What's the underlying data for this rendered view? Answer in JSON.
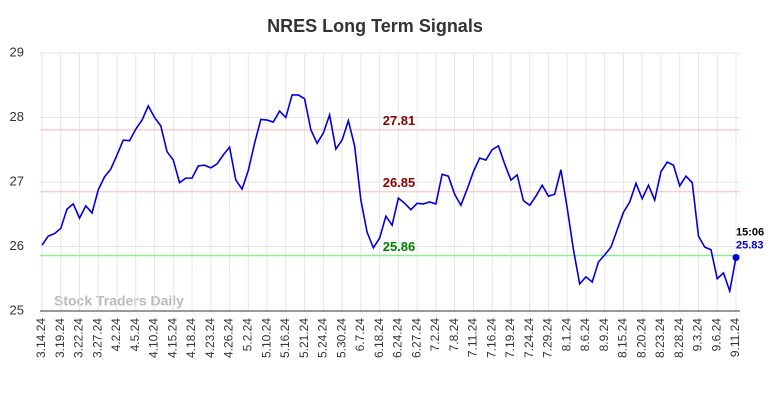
{
  "chart_data": {
    "type": "line",
    "title": "NRES Long Term Signals",
    "watermark": "Stock Traders Daily",
    "categories": [
      "3.14.24",
      null,
      null,
      "3.19.24",
      null,
      null,
      "3.22.24",
      null,
      null,
      "3.27.24",
      null,
      null,
      "4.2.24",
      null,
      null,
      "4.5.24",
      null,
      null,
      "4.10.24",
      null,
      null,
      "4.15.24",
      null,
      null,
      "4.18.24",
      null,
      null,
      "4.23.24",
      null,
      null,
      "4.26.24",
      null,
      null,
      "5.2.24",
      null,
      null,
      "5.10.24",
      null,
      null,
      "5.16.24",
      null,
      null,
      "5.21.24",
      null,
      null,
      "5.24.24",
      null,
      null,
      "5.30.24",
      null,
      null,
      "6.7.24",
      null,
      null,
      "6.18.24",
      null,
      null,
      "6.24.24",
      null,
      null,
      "6.27.24",
      null,
      null,
      "7.2.24",
      null,
      null,
      "7.8.24",
      null,
      null,
      "7.11.24",
      null,
      null,
      "7.16.24",
      null,
      null,
      "7.19.24",
      null,
      null,
      "7.24.24",
      null,
      null,
      "7.29.24",
      null,
      null,
      "8.1.24",
      null,
      null,
      "8.6.24",
      null,
      null,
      "8.9.24",
      null,
      null,
      "8.15.24",
      null,
      null,
      "8.20.24",
      null,
      null,
      "8.23.24",
      null,
      null,
      "8.28.24",
      null,
      null,
      "9.3.24",
      null,
      null,
      "9.6.24",
      null,
      null,
      "9.11.24"
    ],
    "series": [
      {
        "name": "NRES",
        "color": "#0000dd",
        "values": [
          26.02,
          26.16,
          26.2,
          26.28,
          26.58,
          26.66,
          26.44,
          26.63,
          26.52,
          26.88,
          27.08,
          27.2,
          27.42,
          27.65,
          27.64,
          27.82,
          27.96,
          28.18,
          28.0,
          27.87,
          27.47,
          27.34,
          26.99,
          27.06,
          27.06,
          27.25,
          27.26,
          27.22,
          27.28,
          27.42,
          27.54,
          27.03,
          26.89,
          27.18,
          27.6,
          27.97,
          27.96,
          27.93,
          28.1,
          28.0,
          28.35,
          28.35,
          28.29,
          27.81,
          27.6,
          27.76,
          28.04,
          27.51,
          27.65,
          27.95,
          27.56,
          26.72,
          26.22,
          25.98,
          26.13,
          26.47,
          26.33,
          26.75,
          26.67,
          26.57,
          26.67,
          26.66,
          26.69,
          26.66,
          27.12,
          27.09,
          26.81,
          26.64,
          26.89,
          27.16,
          27.37,
          27.34,
          27.5,
          27.56,
          27.28,
          27.03,
          27.11,
          26.71,
          26.64,
          26.78,
          26.95,
          26.78,
          26.81,
          27.19,
          26.6,
          25.95,
          25.42,
          25.53,
          25.45,
          25.76,
          25.87,
          25.99,
          26.26,
          26.53,
          26.69,
          26.98,
          26.74,
          26.95,
          26.72,
          27.16,
          27.31,
          27.26,
          26.94,
          27.09,
          26.99,
          26.16,
          25.99,
          25.95,
          25.5,
          25.59,
          25.31,
          25.83
        ]
      }
    ],
    "last_time": "15:06",
    "reference_lines": [
      {
        "value": 27.81,
        "color": "#ffcccc",
        "label_color": "#8b0000"
      },
      {
        "value": 26.85,
        "color": "#ffcccc",
        "label_color": "#8b0000"
      },
      {
        "value": 25.86,
        "color": "#90ee90",
        "label_color": "#008000"
      }
    ],
    "ylim": [
      25,
      29
    ],
    "yticks": [
      25,
      26,
      27,
      28,
      29
    ],
    "grid": true
  }
}
